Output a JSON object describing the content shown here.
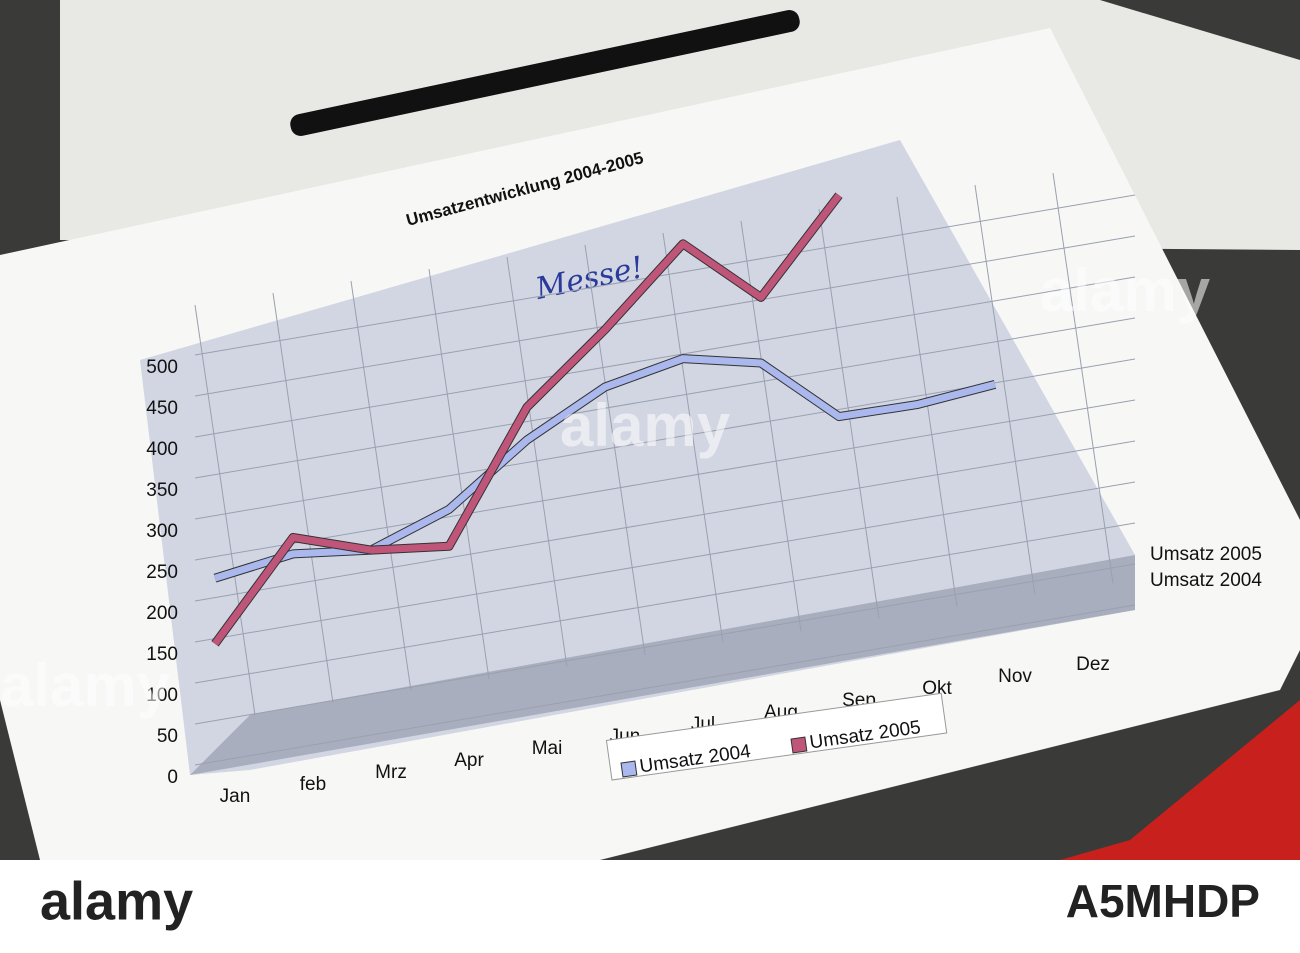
{
  "chart_data": {
    "type": "line",
    "title": "Umsatzentwicklung 2004-2005",
    "annotation": "Messe!",
    "categories": [
      "Jan",
      "feb",
      "Mrz",
      "Apr",
      "Mai",
      "Jun",
      "Jul",
      "Aug",
      "Sep",
      "Okt",
      "Nov",
      "Dez"
    ],
    "series": [
      {
        "name": "Umsatz 2004",
        "color": "#aab8ee",
        "values": [
          240,
          255,
          245,
          280,
          350,
          400,
          420,
          400,
          320,
          320,
          330,
          null
        ]
      },
      {
        "name": "Umsatz 2005",
        "color": "#c0557a",
        "values": [
          160,
          275,
          245,
          235,
          390,
          470,
          560,
          480,
          590,
          null,
          null,
          null
        ]
      }
    ],
    "ylim": [
      0,
      500
    ],
    "yticks": [
      0,
      50,
      100,
      150,
      200,
      250,
      300,
      350,
      400,
      450,
      500
    ],
    "grid": true
  },
  "watermark": "alamy",
  "image_id": "A5MHDP"
}
